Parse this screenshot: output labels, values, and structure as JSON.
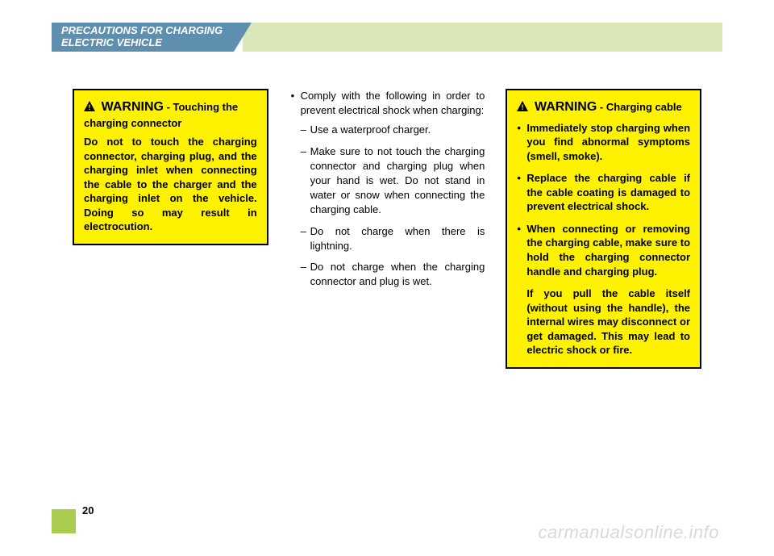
{
  "colors": {
    "header_tab_bg": "#5f8fae",
    "header_bar_bg": "#d9e8b6",
    "warning_bg": "#fff200",
    "warning_border": "#000000",
    "pn_square": "#aacc4f",
    "text": "#000000",
    "watermark": "#d9d9d9"
  },
  "header": {
    "line1": "PRECAUTIONS FOR CHARGING",
    "line2": "ELECTRIC VEHICLE"
  },
  "left_warning": {
    "label": "WARNING",
    "subtitle": "- Touching the charging connector",
    "body": "Do not to touch the charging connector, charging plug, and the charging inlet when connecting the cable to the charger and the charging inlet on the vehicle. Doing so may result in electrocution."
  },
  "middle": {
    "lead": "Comply with the following in order to prevent electrical shock when charging:",
    "items": [
      "Use a waterproof charger.",
      "Make sure to not touch the charging connector and charging plug when your hand is wet. Do not stand in water or snow when connecting the charging cable.",
      "Do not charge when there is lightning.",
      "Do not charge when the charging connector and plug is wet."
    ]
  },
  "right_warning": {
    "label": "WARNING",
    "subtitle": "- Charging cable",
    "items": [
      "Immediately stop charging when you find abnormal symptoms (smell, smoke).",
      "Replace the charging cable if the cable coating is damaged to prevent electrical shock.",
      "When connecting or removing the charging cable, make sure to hold the charging connector handle and charging plug."
    ],
    "note": "If you pull the cable itself (without using the handle), the internal wires may disconnect or get damaged. This may lead to electric shock or fire."
  },
  "page_number": "20",
  "watermark": "carmanualsonline.info"
}
